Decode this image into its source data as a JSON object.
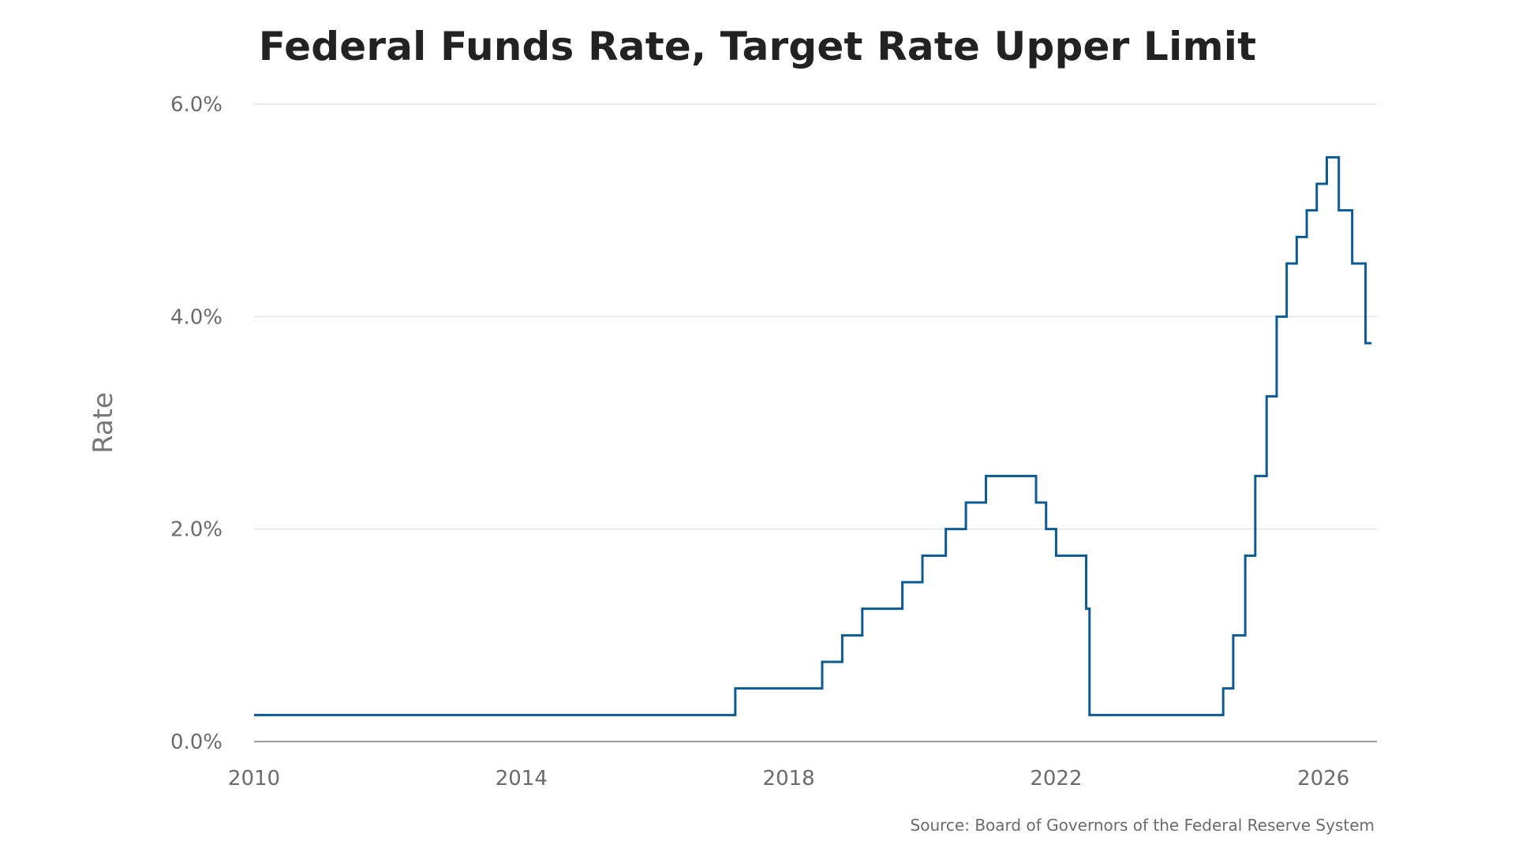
{
  "chart_data": {
    "type": "line",
    "title": "Federal Funds Rate, Target Rate Upper Limit",
    "ylabel": "Rate",
    "xlabel": "",
    "source": "Source: Board of Governors of the Federal Reserve System",
    "ylim": [
      0,
      6
    ],
    "xlim": [
      2010,
      2026.8
    ],
    "yticks": [
      0,
      2,
      4,
      6
    ],
    "ytick_labels": [
      "0.0%",
      "2.0%",
      "4.0%",
      "6.0%"
    ],
    "xticks": [
      2010,
      2014,
      2018,
      2022,
      2026
    ],
    "xtick_labels": [
      "2010",
      "2014",
      "2018",
      "2022",
      "2026"
    ],
    "grid": true,
    "line_color": "#0b5a94",
    "series": [
      {
        "step": true,
        "x": [
          2010.0,
          2017.2,
          2018.5,
          2018.8,
          2019.1,
          2019.7,
          2020.0,
          2020.35,
          2020.65,
          2020.95,
          2021.7,
          2021.85,
          2022.0,
          2022.45,
          2022.5,
          2024.5,
          2024.65,
          2024.83,
          2024.98,
          2025.15,
          2025.3,
          2025.45,
          2025.6,
          2025.75,
          2025.9,
          2026.05,
          2026.18,
          2026.23,
          2026.43,
          2026.63,
          2026.72
        ],
        "y": [
          0.25,
          0.5,
          0.75,
          1.0,
          1.25,
          1.5,
          1.75,
          2.0,
          2.25,
          2.5,
          2.25,
          2.0,
          1.75,
          1.25,
          0.25,
          0.5,
          1.0,
          1.75,
          2.5,
          3.25,
          4.0,
          4.5,
          4.75,
          5.0,
          5.25,
          5.5,
          5.5,
          5.0,
          4.5,
          3.75,
          3.75
        ]
      }
    ]
  }
}
